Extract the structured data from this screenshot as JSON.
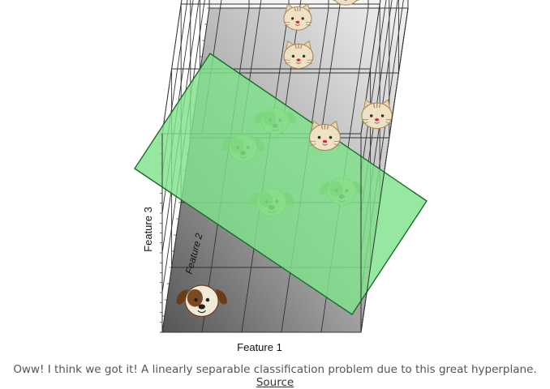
{
  "figure": {
    "axis_labels": {
      "x": "Feature 1",
      "y": "Feature 3",
      "z": "Feature 2"
    },
    "colors": {
      "plane_fill": "#7fe28a",
      "plane_stroke": "#1d6b2c",
      "grid": "#333333",
      "floor_dark": "#5a5a5a",
      "floor_light": "#f0f0f0"
    },
    "points": [
      {
        "kind": "dog-icon",
        "region": "below-plane",
        "x": 0.18,
        "y": 0.05,
        "z": 0.08
      },
      {
        "kind": "cat-icon",
        "region": "above-plane",
        "x": 0.72,
        "y": 0.55,
        "z": 0.86
      },
      {
        "kind": "cat-icon",
        "region": "above-plane",
        "x": 0.48,
        "y": 0.35,
        "z": 0.85
      },
      {
        "kind": "cat-icon",
        "region": "above-plane",
        "x": 0.52,
        "y": 0.45,
        "z": 0.7
      },
      {
        "kind": "cat-icon",
        "region": "above-plane",
        "x": 0.95,
        "y": 0.35,
        "z": 0.55
      },
      {
        "kind": "cat-icon",
        "region": "above-plane",
        "x": 0.7,
        "y": 0.3,
        "z": 0.5
      },
      {
        "kind": "dog-icon",
        "region": "below-plane",
        "x": 0.45,
        "y": 0.45,
        "z": 0.5
      },
      {
        "kind": "dog-icon",
        "region": "below-plane",
        "x": 0.3,
        "y": 0.35,
        "z": 0.45
      },
      {
        "kind": "dog-icon",
        "region": "below-plane",
        "x": 0.48,
        "y": 0.3,
        "z": 0.3
      },
      {
        "kind": "dog-icon",
        "region": "below-plane",
        "x": 0.82,
        "y": 0.25,
        "z": 0.35
      }
    ]
  },
  "caption": {
    "text": "Oww! I think we got it! A linearly separable classification problem due to this great hyperplane. ",
    "link": "Source"
  }
}
